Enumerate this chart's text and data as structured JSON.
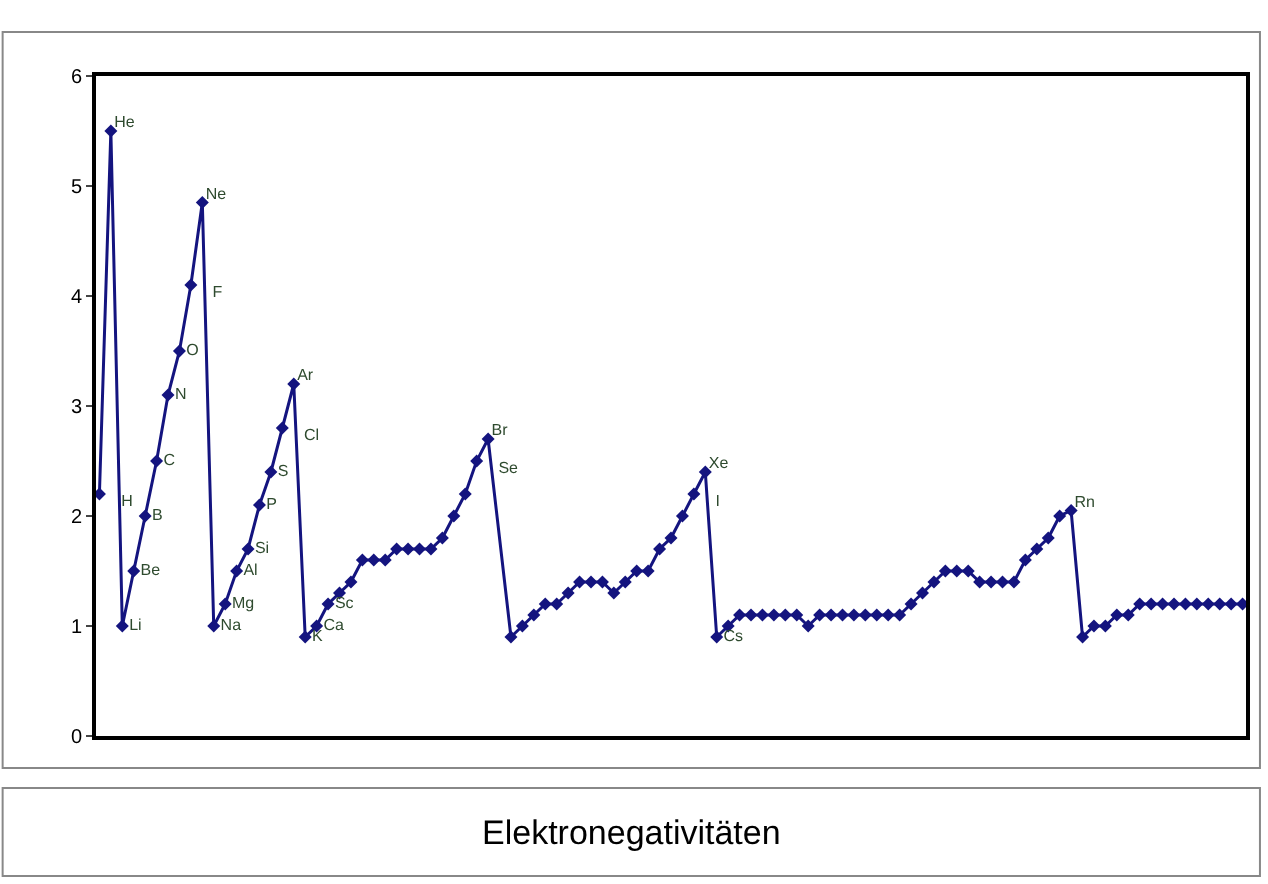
{
  "chart_data": {
    "type": "line",
    "title": "Elektronegativitäten",
    "categories": [
      null,
      null,
      null,
      null,
      null,
      null,
      null,
      null,
      null,
      null,
      null,
      null,
      null,
      null,
      null,
      null,
      null,
      null,
      null,
      null,
      null,
      null,
      null,
      null,
      null,
      null,
      null,
      null,
      null,
      null,
      null,
      null,
      null,
      null,
      null,
      null,
      null,
      null,
      null,
      null,
      null,
      null,
      null,
      null,
      null,
      null,
      null,
      null,
      null,
      null,
      null,
      null,
      null,
      null,
      null,
      null,
      null,
      null,
      null,
      null,
      null,
      null,
      null,
      null,
      null,
      null,
      null,
      null,
      null,
      null,
      null,
      null,
      null,
      null,
      null,
      null,
      null,
      null,
      null,
      null,
      null,
      null,
      null,
      null,
      null,
      null,
      null,
      null,
      null,
      null,
      null,
      null,
      null,
      null,
      null,
      null,
      null,
      null,
      null,
      null,
      null
    ],
    "series": [
      {
        "color": "#14147f",
        "values": [
          2.2,
          5.5,
          1.0,
          1.5,
          2.0,
          2.5,
          3.1,
          3.5,
          4.1,
          4.85,
          1.0,
          1.2,
          1.5,
          1.7,
          2.1,
          2.4,
          2.8,
          3.2,
          0.9,
          1.0,
          1.2,
          1.3,
          1.4,
          1.6,
          1.6,
          1.6,
          1.7,
          1.7,
          1.7,
          1.7,
          1.8,
          2.0,
          2.2,
          2.5,
          2.7,
          null,
          0.9,
          1.0,
          1.1,
          1.2,
          1.2,
          1.3,
          1.4,
          1.4,
          1.4,
          1.3,
          1.4,
          1.5,
          1.5,
          1.7,
          1.8,
          2.0,
          2.2,
          2.4,
          0.9,
          1.0,
          1.1,
          1.1,
          1.1,
          1.1,
          1.1,
          1.1,
          1.0,
          1.1,
          1.1,
          1.1,
          1.1,
          1.1,
          1.1,
          1.1,
          1.1,
          1.2,
          1.3,
          1.4,
          1.5,
          1.5,
          1.5,
          1.4,
          1.4,
          1.4,
          1.4,
          1.6,
          1.7,
          1.8,
          2.0,
          2.05,
          0.9,
          1.0,
          1.0,
          1.1,
          1.1,
          1.2,
          1.2,
          1.2,
          1.2,
          1.2,
          1.2,
          1.2,
          1.2,
          1.2,
          1.2
        ],
        "value_labels": [
          "H",
          "He",
          "Li",
          "Be",
          "B",
          "C",
          "N",
          "O",
          "F",
          "Ne",
          "Na",
          "Mg",
          "Al",
          "Si",
          "P",
          "S",
          "Cl",
          "Ar",
          "K",
          "Ca",
          "Sc",
          null,
          null,
          null,
          null,
          null,
          null,
          null,
          null,
          null,
          null,
          null,
          null,
          "Se",
          "Br",
          null,
          null,
          null,
          null,
          null,
          null,
          null,
          null,
          null,
          null,
          null,
          null,
          null,
          null,
          null,
          null,
          null,
          "I",
          "Xe",
          "Cs",
          null,
          null,
          null,
          null,
          null,
          null,
          null,
          null,
          null,
          null,
          null,
          null,
          null,
          null,
          null,
          null,
          null,
          null,
          null,
          null,
          null,
          null,
          null,
          null,
          null,
          null,
          null,
          null,
          null,
          null,
          "Rn",
          null,
          null,
          null,
          null,
          null,
          null,
          null,
          null,
          null,
          null,
          null,
          null,
          null,
          null,
          null
        ]
      }
    ],
    "ylim": [
      0,
      6
    ],
    "yticks": [
      0,
      1,
      2,
      3,
      4,
      5,
      6
    ],
    "grid": false,
    "legend": false,
    "marker": "diamond",
    "line_style": "solid"
  }
}
